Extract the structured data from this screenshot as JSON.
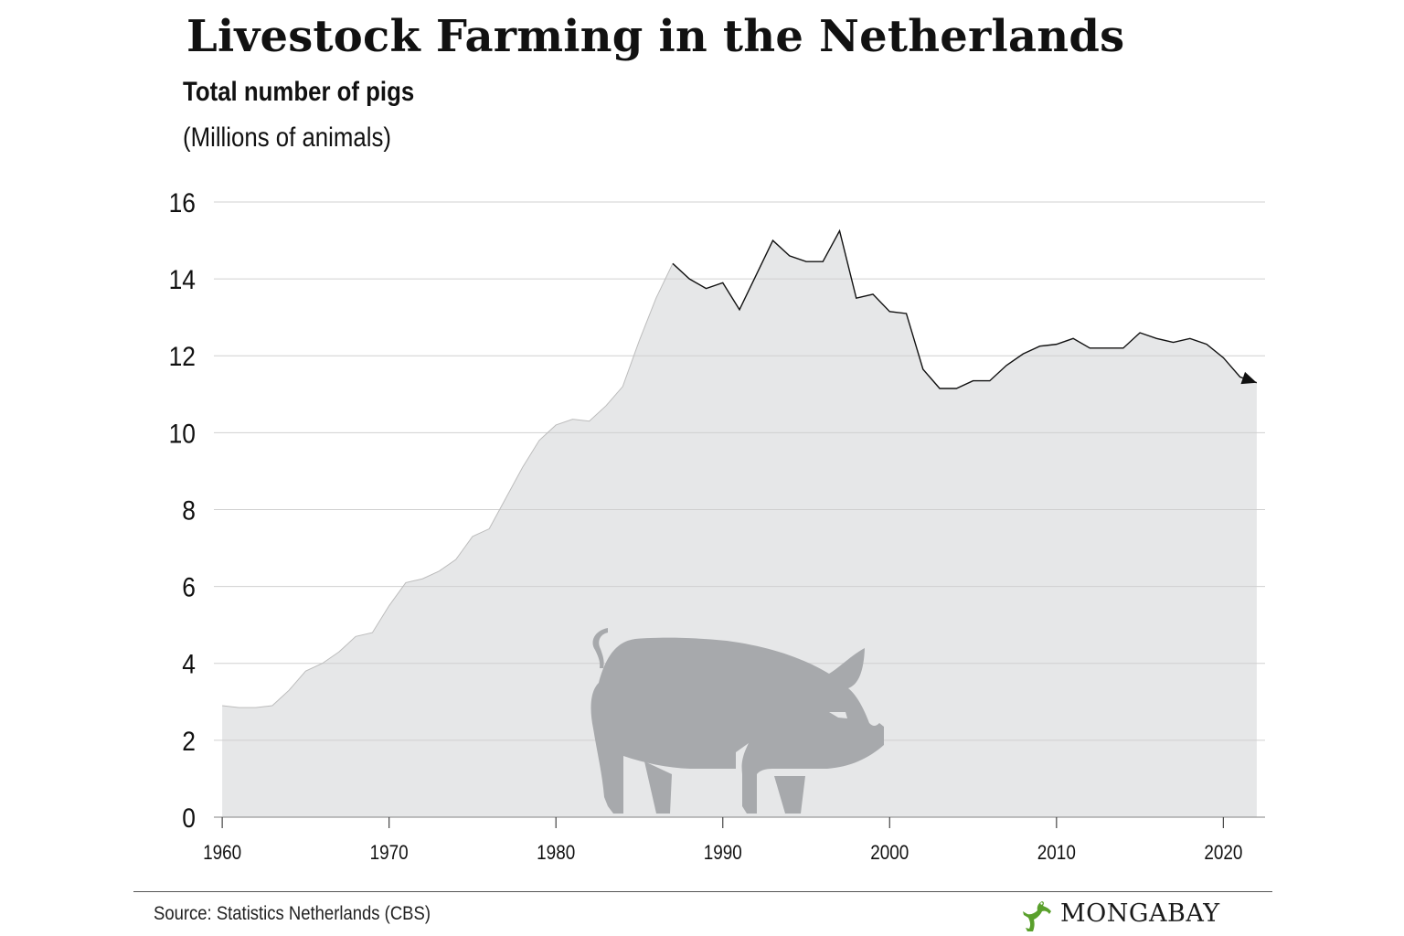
{
  "header": {
    "title": "Livestock Farming in the Netherlands",
    "subtitle": "Total number of pigs",
    "units": "(Millions of animals)"
  },
  "footer": {
    "source": "Source: Statistics Netherlands (CBS)",
    "brand": "MONGABAY"
  },
  "colors": {
    "area_fill": "#e6e7e8",
    "line": "#111111",
    "gridline": "#d0d0d0",
    "pig_silhouette": "#a7a9ac",
    "logo_green": "#5aa02c"
  },
  "icons": {
    "illustration": "pig-icon",
    "brand": "gecko-icon"
  },
  "chart_data": {
    "type": "area",
    "title": "Livestock Farming in the Netherlands",
    "subtitle": "Total number of pigs",
    "ylabel": "(Millions of animals)",
    "xlim": [
      1959.5,
      2022.5
    ],
    "ylim": [
      0,
      16
    ],
    "x_ticks": [
      1960,
      1970,
      1980,
      1990,
      2000,
      2010,
      2020
    ],
    "y_ticks": [
      0,
      2,
      4,
      6,
      8,
      10,
      12,
      14,
      16
    ],
    "grid": "horizontal",
    "outline_from": 1987,
    "end_marker": "arrow",
    "x": [
      1960,
      1961,
      1962,
      1963,
      1964,
      1965,
      1966,
      1967,
      1968,
      1969,
      1970,
      1971,
      1972,
      1973,
      1974,
      1975,
      1976,
      1977,
      1978,
      1979,
      1980,
      1981,
      1982,
      1983,
      1984,
      1985,
      1986,
      1987,
      1988,
      1989,
      1990,
      1991,
      1992,
      1993,
      1994,
      1995,
      1996,
      1997,
      1998,
      1999,
      2000,
      2001,
      2002,
      2003,
      2004,
      2005,
      2006,
      2007,
      2008,
      2009,
      2010,
      2011,
      2012,
      2013,
      2014,
      2015,
      2016,
      2017,
      2018,
      2019,
      2020,
      2021,
      2022
    ],
    "y": [
      2.9,
      2.85,
      2.85,
      2.9,
      3.3,
      3.8,
      4.0,
      4.3,
      4.7,
      4.8,
      5.5,
      6.1,
      6.2,
      6.4,
      6.7,
      7.3,
      7.5,
      8.3,
      9.1,
      9.8,
      10.2,
      10.35,
      10.3,
      10.7,
      11.2,
      12.4,
      13.5,
      14.4,
      14.0,
      13.75,
      13.9,
      13.2,
      14.1,
      15.0,
      14.6,
      14.45,
      14.45,
      15.25,
      13.5,
      13.6,
      13.15,
      13.1,
      11.65,
      11.15,
      11.15,
      11.35,
      11.35,
      11.75,
      12.05,
      12.25,
      12.3,
      12.45,
      12.2,
      12.2,
      12.2,
      12.6,
      12.45,
      12.35,
      12.45,
      12.3,
      11.95,
      11.45,
      11.3
    ]
  }
}
